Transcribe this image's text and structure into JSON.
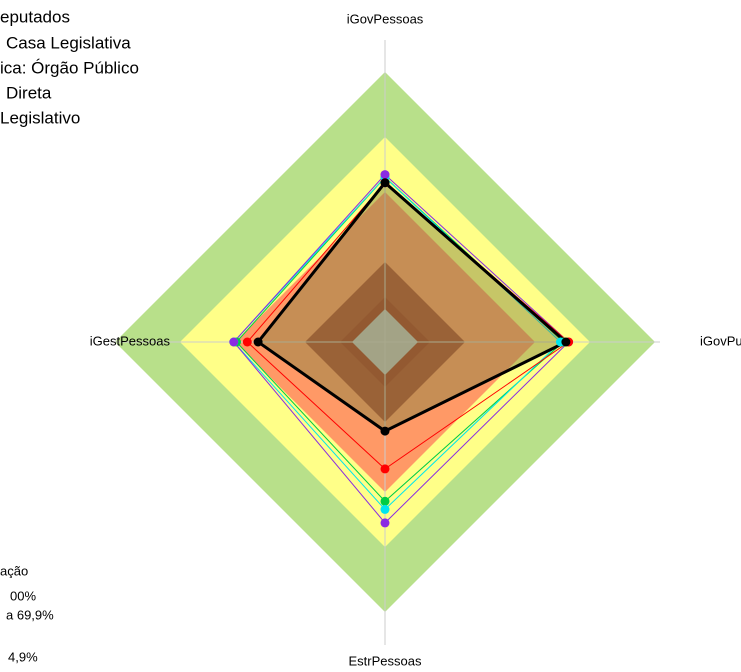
{
  "chart_data": {
    "type": "radar",
    "categories": [
      "iGovPessoas",
      "iGovPub",
      "EstrPessoas",
      "iGestPessoas"
    ],
    "rlim": [
      0,
      100
    ],
    "info_lines": [
      "eputados",
      "Casa Legislativa",
      "ica: Órgão Público",
      "Direta",
      "Legislativo"
    ],
    "legend_lines": [
      "ação",
      "00%",
      "a 69,9%",
      "4,9%"
    ],
    "series": [
      {
        "color": "#00cc44",
        "values": [
          61,
          66,
          59,
          55
        ]
      },
      {
        "color": "#00e5ee",
        "values": [
          61,
          65,
          62,
          56
        ]
      },
      {
        "color": "#8a2be2",
        "values": [
          62,
          68,
          67,
          56
        ]
      },
      {
        "color": "#ff0000",
        "values": [
          59,
          68,
          47,
          51
        ]
      },
      {
        "color": "#000000",
        "values": [
          59,
          67,
          33,
          47
        ]
      }
    ]
  }
}
